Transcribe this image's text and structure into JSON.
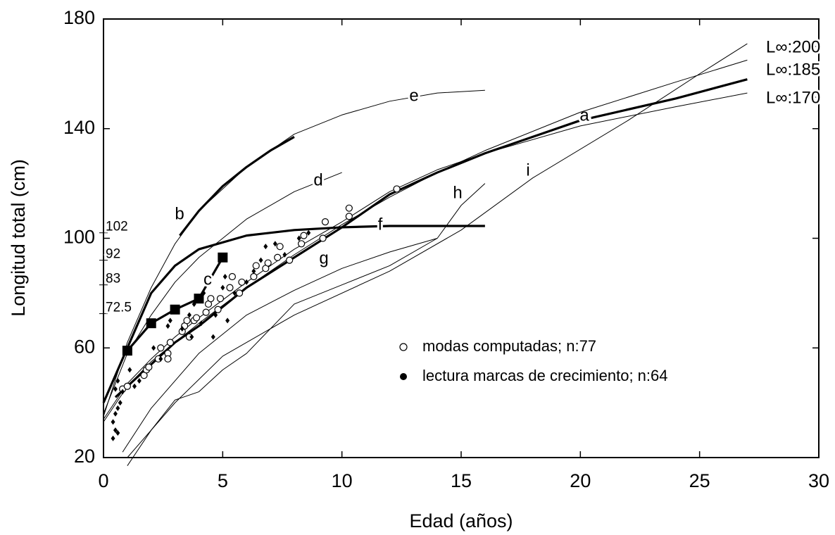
{
  "chart_data": {
    "type": "line",
    "x_label": "Edad (años)",
    "y_label": "Longitud total (cm)",
    "xlim": [
      0,
      30
    ],
    "xticks": [
      0,
      5,
      10,
      15,
      20,
      25,
      30
    ],
    "ylim": [
      20,
      180
    ],
    "yticks": [
      20,
      60,
      100,
      140,
      180
    ],
    "reference_marks": [
      102,
      92,
      83,
      72.5
    ],
    "linf_labels": [
      "L∞:200",
      "L∞:185",
      "L∞:170"
    ],
    "series": [
      {
        "label": "a",
        "style": "thick",
        "x": [
          0.5,
          1,
          2,
          3,
          4,
          5,
          6,
          8,
          10,
          12,
          14,
          16,
          20,
          24,
          27
        ],
        "values": [
          42,
          46,
          54,
          62,
          68,
          75,
          82,
          93,
          104,
          116,
          124,
          131,
          143,
          151,
          158
        ]
      },
      {
        "style": "thin",
        "x": [
          0,
          1,
          2,
          3,
          4,
          6,
          8,
          10,
          12,
          14,
          16,
          20,
          24,
          27
        ],
        "values": [
          33,
          46,
          55,
          62,
          69,
          82,
          94,
          105,
          115,
          124,
          132,
          146,
          157,
          165
        ]
      },
      {
        "style": "thin",
        "x": [
          0,
          1,
          2,
          3,
          4,
          6,
          8,
          10,
          12,
          14,
          16,
          20,
          24,
          27
        ],
        "values": [
          34,
          47,
          56,
          64,
          71,
          84,
          96,
          106,
          117,
          125,
          131,
          141,
          148,
          153
        ]
      },
      {
        "label": "e",
        "style": "thin",
        "x": [
          0,
          1,
          2,
          3,
          4,
          6,
          8,
          10,
          12,
          14,
          16
        ],
        "values": [
          35,
          62,
          82,
          98,
          110,
          126,
          138,
          145,
          150,
          153,
          154
        ]
      },
      {
        "label": "b",
        "style": "thick",
        "x": [
          3.2,
          4,
          5,
          6,
          7,
          8
        ],
        "values": [
          101,
          110,
          119,
          126,
          132,
          137
        ]
      },
      {
        "label": "d",
        "style": "thin",
        "x": [
          0,
          1,
          2,
          3,
          4,
          6,
          8,
          10
        ],
        "values": [
          36,
          58,
          72,
          84,
          93,
          107,
          117,
          124
        ]
      },
      {
        "label": "f",
        "style": "thick",
        "x": [
          0,
          1,
          2,
          3,
          4,
          6,
          8,
          10,
          12,
          16
        ],
        "values": [
          40,
          60,
          80,
          90,
          96,
          101,
          103,
          104,
          104.5,
          104.5
        ]
      },
      {
        "label": "g",
        "style": "thin",
        "x": [
          0.8,
          2,
          4,
          6,
          8,
          10,
          12,
          14
        ],
        "values": [
          22,
          38,
          58,
          72,
          81,
          89,
          95,
          100
        ]
      },
      {
        "label": "h",
        "style": "thin",
        "x": [
          1,
          2,
          3,
          4,
          5,
          6,
          8,
          10,
          12,
          14,
          15,
          16
        ],
        "values": [
          17,
          30,
          41,
          44,
          52,
          58,
          76,
          83,
          90,
          100,
          112,
          120
        ]
      },
      {
        "label": "i",
        "style": "thin",
        "x": [
          1,
          3,
          5,
          8,
          12,
          15,
          18,
          22,
          25,
          27
        ],
        "values": [
          20,
          40,
          57,
          72,
          88,
          103,
          122,
          143,
          160,
          171
        ]
      },
      {
        "label": "c",
        "style": "thick",
        "marker": "square",
        "x": [
          1,
          2,
          3,
          4,
          5
        ],
        "values": [
          59,
          69,
          74,
          78,
          93
        ]
      },
      {
        "name": "modas computadas; n:77",
        "marker": "open",
        "x": [
          0.8,
          1,
          1.7,
          1.8,
          1.9,
          2.3,
          2.4,
          2.7,
          2.7,
          2.8,
          3.3,
          3.4,
          3.5,
          3.6,
          3.8,
          3.9,
          4.3,
          4.4,
          4.5,
          4.8,
          4.9,
          5.3,
          5.4,
          5.7,
          5.8,
          6.3,
          6.4,
          6.8,
          6.9,
          7.3,
          7.4,
          7.8,
          8.3,
          8.4,
          9.2,
          9.3,
          10.3,
          10.3,
          12.3
        ],
        "values": [
          45,
          46,
          50,
          52,
          53,
          56,
          60,
          58,
          56,
          62,
          66,
          68,
          70,
          64,
          70,
          71,
          73,
          76,
          78,
          74,
          78,
          82,
          86,
          80,
          84,
          86,
          90,
          89,
          91,
          93,
          97,
          92,
          98,
          101,
          100,
          106,
          108,
          111,
          118
        ]
      },
      {
        "name": "lectura marcas de crecimiento; n:64",
        "marker": "filled",
        "x": [
          0.4,
          0.5,
          0.6,
          0.4,
          0.5,
          0.6,
          0.7,
          0.5,
          0.6,
          0.8,
          1.1,
          1.3,
          1.5,
          2.1,
          2.4,
          2.7,
          2.8,
          3.3,
          3.6,
          3.7,
          3.8,
          4.1,
          4.2,
          4.6,
          4.7,
          5.0,
          5.1,
          5.2,
          5.5,
          6.0,
          6.3,
          6.6,
          6.8,
          7.2,
          7.6,
          8.2,
          8.6
        ],
        "values": [
          27,
          30,
          29,
          33,
          36,
          38,
          40,
          45,
          48,
          44,
          52,
          46,
          48,
          60,
          56,
          68,
          70,
          67,
          72,
          64,
          76,
          69,
          80,
          64,
          72,
          82,
          86,
          70,
          80,
          84,
          88,
          92,
          97,
          98,
          94,
          100,
          102
        ]
      }
    ]
  }
}
